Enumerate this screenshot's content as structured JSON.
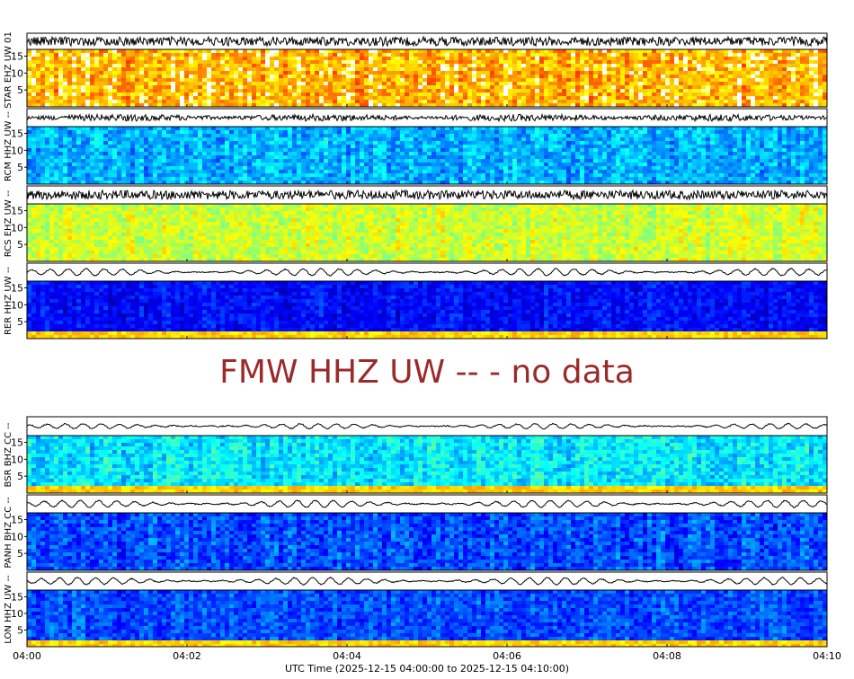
{
  "chart_data": {
    "type": "heatmap",
    "xlabel": "UTC Time (2025-12-15 04:00:00 to 2025-12-15 04:10:00)",
    "x_ticks": [
      "04:00",
      "04:02",
      "04:04",
      "04:06",
      "04:08",
      "04:10"
    ],
    "y_ticks": [
      "5",
      "10",
      "15"
    ],
    "ylim": [
      0,
      17
    ],
    "colormap": "jet",
    "no_data_message": "FMW HHZ UW -- - no data",
    "panels": [
      {
        "label": "STAR EHZ UW 01",
        "palette": "hot",
        "level": 0.85,
        "spread": 0.13,
        "wiggle": "noisy",
        "low_band": false
      },
      {
        "label": "RCM HHZ UW --",
        "palette": "jet",
        "level": 0.3,
        "spread": 0.07,
        "wiggle": "bursty",
        "low_band": false
      },
      {
        "label": "RCS EHZ UW --",
        "palette": "jet",
        "level": 0.58,
        "spread": 0.06,
        "wiggle": "noisy",
        "low_band": false
      },
      {
        "label": "RER HHZ UW --",
        "palette": "jet",
        "level": 0.13,
        "spread": 0.05,
        "wiggle": "wavy",
        "low_band": true
      },
      {
        "label": "BSR BHZ CC --",
        "palette": "jet",
        "level": 0.36,
        "spread": 0.07,
        "wiggle": "small",
        "low_band": true
      },
      {
        "label": "PANH BHZ CC --",
        "palette": "jet",
        "level": 0.2,
        "spread": 0.07,
        "wiggle": "wavy",
        "low_band": false
      },
      {
        "label": "LON HHZ UW --",
        "palette": "jet",
        "level": 0.2,
        "spread": 0.06,
        "wiggle": "wavy",
        "low_band": true
      }
    ]
  }
}
